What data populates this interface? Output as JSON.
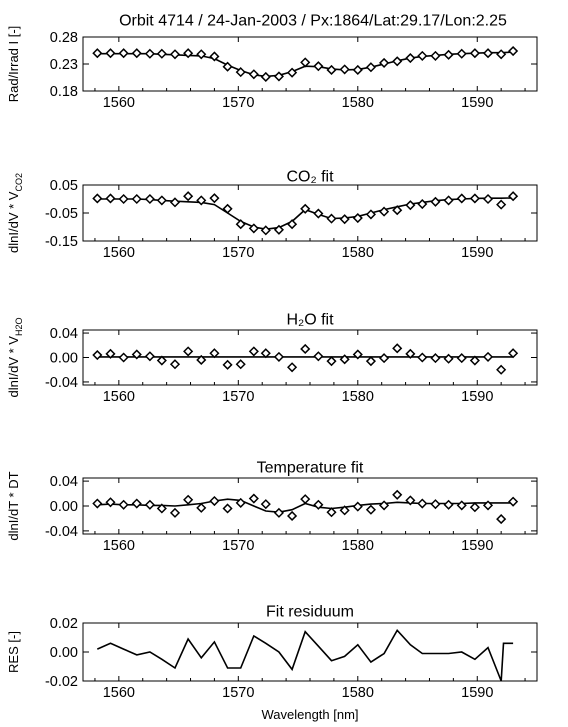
{
  "chart_data": [
    {
      "type": "line",
      "title": "Orbit 4714 / 24-Jan-2003 / Px:1864/Lat:29.17/Lon:2.25",
      "ylabel": "Rad/Irrad I [-]",
      "xlabel": "",
      "xlim": [
        1557,
        1595
      ],
      "ylim": [
        0.18,
        0.28
      ],
      "xticks": [
        1560,
        1570,
        1580,
        1590
      ],
      "xtick_labels": [
        "1560",
        "1570",
        "1580",
        "1590"
      ],
      "yticks": [
        0.18,
        0.23,
        0.28
      ],
      "ytick_labels": [
        "0.18",
        "0.23",
        "0.28"
      ],
      "x": [
        1558.2,
        1559.3,
        1560.4,
        1561.5,
        1562.6,
        1563.6,
        1564.7,
        1565.8,
        1566.9,
        1568.0,
        1569.1,
        1570.2,
        1571.3,
        1572.3,
        1573.4,
        1574.5,
        1575.6,
        1576.7,
        1577.8,
        1578.9,
        1580.0,
        1581.1,
        1582.2,
        1583.3,
        1584.4,
        1585.4,
        1586.5,
        1587.6,
        1588.7,
        1589.8,
        1590.9,
        1592.0,
        1593.0
      ],
      "series": [
        {
          "style": "points",
          "values": [
            0.25,
            0.25,
            0.25,
            0.25,
            0.249,
            0.249,
            0.248,
            0.25,
            0.248,
            0.244,
            0.225,
            0.215,
            0.211,
            0.206,
            0.207,
            0.214,
            0.233,
            0.226,
            0.219,
            0.22,
            0.219,
            0.224,
            0.232,
            0.235,
            0.241,
            0.245,
            0.245,
            0.247,
            0.249,
            0.25,
            0.25,
            0.248,
            0.254
          ]
        },
        {
          "style": "line",
          "values": [
            0.249,
            0.249,
            0.249,
            0.249,
            0.249,
            0.248,
            0.247,
            0.246,
            0.245,
            0.24,
            0.228,
            0.218,
            0.21,
            0.207,
            0.209,
            0.216,
            0.226,
            0.225,
            0.221,
            0.219,
            0.22,
            0.224,
            0.23,
            0.236,
            0.241,
            0.244,
            0.246,
            0.248,
            0.249,
            0.25,
            0.251,
            0.251,
            0.252
          ]
        }
      ]
    },
    {
      "type": "line",
      "title": "CO₂ fit",
      "ylabel": "dlnI/dV * V_CO2",
      "xlabel": "",
      "xlim": [
        1557,
        1595
      ],
      "ylim": [
        -0.15,
        0.05
      ],
      "xticks": [
        1560,
        1570,
        1580,
        1590
      ],
      "xtick_labels": [
        "1560",
        "1570",
        "1580",
        "1590"
      ],
      "yticks": [
        -0.15,
        -0.05,
        0.05
      ],
      "ytick_labels": [
        "-0.15",
        "-0.05",
        "0.05"
      ],
      "x": [
        1558.2,
        1559.3,
        1560.4,
        1561.5,
        1562.6,
        1563.6,
        1564.7,
        1565.8,
        1566.9,
        1568.0,
        1569.1,
        1570.2,
        1571.3,
        1572.3,
        1573.4,
        1574.5,
        1575.6,
        1576.7,
        1577.8,
        1578.9,
        1580.0,
        1581.1,
        1582.2,
        1583.3,
        1584.4,
        1585.4,
        1586.5,
        1587.6,
        1588.7,
        1589.8,
        1590.9,
        1592.0,
        1593.0
      ],
      "series": [
        {
          "style": "points",
          "values": [
            0.002,
            0.002,
            0.0,
            0.0,
            0.0,
            -0.005,
            -0.012,
            0.01,
            -0.005,
            0.003,
            -0.035,
            -0.09,
            -0.105,
            -0.112,
            -0.11,
            -0.09,
            -0.035,
            -0.052,
            -0.07,
            -0.072,
            -0.068,
            -0.055,
            -0.045,
            -0.04,
            -0.022,
            -0.018,
            -0.01,
            -0.005,
            0.002,
            0.002,
            0.0,
            -0.02,
            0.01
          ]
        },
        {
          "style": "line",
          "values": [
            0.0,
            0.0,
            0.0,
            0.0,
            -0.002,
            -0.005,
            -0.008,
            -0.01,
            -0.012,
            -0.02,
            -0.05,
            -0.08,
            -0.1,
            -0.108,
            -0.102,
            -0.08,
            -0.038,
            -0.055,
            -0.07,
            -0.068,
            -0.062,
            -0.05,
            -0.038,
            -0.028,
            -0.018,
            -0.012,
            -0.006,
            -0.002,
            0.0,
            0.002,
            0.003,
            0.003,
            0.004
          ]
        }
      ]
    },
    {
      "type": "line",
      "title": "H₂O fit",
      "ylabel": "dlnI/dV * V_H2O",
      "xlabel": "",
      "xlim": [
        1557,
        1595
      ],
      "ylim": [
        -0.045,
        0.045
      ],
      "xticks": [
        1560,
        1570,
        1580,
        1590
      ],
      "xtick_labels": [
        "1560",
        "1570",
        "1580",
        "1590"
      ],
      "yticks": [
        -0.04,
        0.0,
        0.04
      ],
      "ytick_labels": [
        "-0.04",
        "0.00",
        "0.04"
      ],
      "x": [
        1558.2,
        1559.3,
        1560.4,
        1561.5,
        1562.6,
        1563.6,
        1564.7,
        1565.8,
        1566.9,
        1568.0,
        1569.1,
        1570.2,
        1571.3,
        1572.3,
        1573.4,
        1574.5,
        1575.6,
        1576.7,
        1577.8,
        1578.9,
        1580.0,
        1581.1,
        1582.2,
        1583.3,
        1584.4,
        1585.4,
        1586.5,
        1587.6,
        1588.7,
        1589.8,
        1590.9,
        1592.0,
        1593.0
      ],
      "series": [
        {
          "style": "points",
          "values": [
            0.004,
            0.006,
            0.0,
            0.005,
            0.002,
            -0.005,
            -0.011,
            0.01,
            -0.004,
            0.007,
            -0.012,
            -0.011,
            0.01,
            0.007,
            0.001,
            -0.016,
            0.014,
            0.002,
            -0.006,
            -0.003,
            0.005,
            -0.006,
            -0.001,
            0.015,
            0.006,
            0.0,
            -0.001,
            -0.002,
            -0.001,
            -0.005,
            0.001,
            -0.02,
            0.007
          ]
        },
        {
          "style": "line",
          "values": [
            0.001,
            0.001,
            0.001,
            0.001,
            0.001,
            0.001,
            0.001,
            0.001,
            0.001,
            0.001,
            0.001,
            0.001,
            0.001,
            0.001,
            0.001,
            0.001,
            0.001,
            0.001,
            0.001,
            0.001,
            0.001,
            0.001,
            0.001,
            0.001,
            0.001,
            0.001,
            0.001,
            0.001,
            0.001,
            0.001,
            0.001,
            0.001,
            0.001
          ]
        }
      ]
    },
    {
      "type": "line",
      "title": "Temperature fit",
      "ylabel": "dlnI/dT * DT",
      "xlabel": "",
      "xlim": [
        1557,
        1595
      ],
      "ylim": [
        -0.045,
        0.045
      ],
      "xticks": [
        1560,
        1570,
        1580,
        1590
      ],
      "xtick_labels": [
        "1560",
        "1570",
        "1580",
        "1590"
      ],
      "yticks": [
        -0.04,
        0.0,
        0.04
      ],
      "ytick_labels": [
        "-0.04",
        "0.00",
        "0.04"
      ],
      "x": [
        1558.2,
        1559.3,
        1560.4,
        1561.5,
        1562.6,
        1563.6,
        1564.7,
        1565.8,
        1566.9,
        1568.0,
        1569.1,
        1570.2,
        1571.3,
        1572.3,
        1573.4,
        1574.5,
        1575.6,
        1576.7,
        1577.8,
        1578.9,
        1580.0,
        1581.1,
        1582.2,
        1583.3,
        1584.4,
        1585.4,
        1586.5,
        1587.6,
        1588.7,
        1589.8,
        1590.9,
        1592.0,
        1593.0
      ],
      "series": [
        {
          "style": "points",
          "values": [
            0.004,
            0.006,
            0.002,
            0.004,
            0.002,
            -0.004,
            -0.011,
            0.01,
            -0.003,
            0.008,
            -0.004,
            0.005,
            0.012,
            0.003,
            -0.011,
            -0.016,
            0.011,
            0.002,
            -0.01,
            -0.007,
            -0.001,
            -0.006,
            0.001,
            0.018,
            0.009,
            0.004,
            0.003,
            0.002,
            0.001,
            -0.002,
            0.001,
            -0.021,
            0.007
          ]
        },
        {
          "style": "line",
          "values": [
            0.002,
            0.003,
            0.002,
            0.002,
            0.001,
            0.001,
            0.0,
            0.002,
            0.004,
            0.008,
            0.011,
            0.009,
            0.0,
            -0.008,
            -0.01,
            -0.006,
            0.004,
            -0.002,
            -0.004,
            -0.002,
            0.001,
            0.003,
            0.004,
            0.006,
            0.005,
            0.004,
            0.004,
            0.004,
            0.004,
            0.005,
            0.005,
            0.005,
            0.005
          ]
        }
      ]
    },
    {
      "type": "line",
      "title": "Fit residuum",
      "ylabel": "RES [-]",
      "xlabel": "Wavelength [nm]",
      "xlim": [
        1557,
        1595
      ],
      "ylim": [
        -0.02,
        0.02
      ],
      "xticks": [
        1560,
        1570,
        1580,
        1590
      ],
      "xtick_labels": [
        "1560",
        "1570",
        "1580",
        "1590"
      ],
      "yticks": [
        -0.02,
        0.0,
        0.02
      ],
      "ytick_labels": [
        "-0.02",
        "0.00",
        "0.02"
      ],
      "x": [
        1558.2,
        1559.3,
        1560.4,
        1561.5,
        1562.6,
        1563.6,
        1564.7,
        1565.8,
        1566.9,
        1568.0,
        1569.1,
        1570.2,
        1571.3,
        1572.3,
        1573.4,
        1574.5,
        1575.6,
        1576.7,
        1577.8,
        1578.9,
        1580.0,
        1581.1,
        1582.2,
        1583.3,
        1584.4,
        1585.4,
        1586.5,
        1587.6,
        1588.7,
        1589.8,
        1590.9,
        1592.0,
        1592.2,
        1593.0
      ],
      "series": [
        {
          "style": "line",
          "values": [
            0.002,
            0.006,
            0.002,
            -0.002,
            0.0,
            -0.005,
            -0.011,
            0.009,
            -0.004,
            0.007,
            -0.011,
            -0.011,
            0.011,
            0.006,
            0.0,
            -0.012,
            0.014,
            0.004,
            -0.006,
            -0.003,
            0.005,
            -0.007,
            -0.001,
            0.015,
            0.005,
            -0.001,
            -0.001,
            -0.001,
            0.0,
            -0.005,
            0.003,
            -0.02,
            0.006,
            0.006
          ]
        }
      ]
    }
  ]
}
